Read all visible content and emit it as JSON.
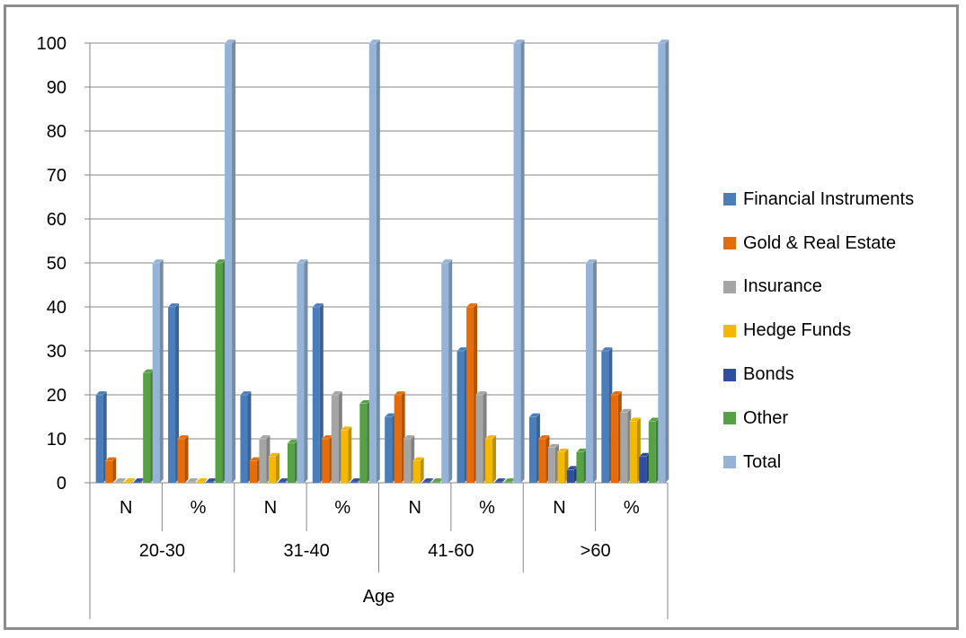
{
  "chart_data": {
    "type": "bar",
    "title": "",
    "ylabel": "",
    "xlabel": "Age",
    "ylim": [
      0,
      100
    ],
    "yticks": [
      0,
      10,
      20,
      30,
      40,
      50,
      60,
      70,
      80,
      90,
      100
    ],
    "groups": [
      "20-30",
      "31-40",
      "41-60",
      ">60"
    ],
    "categories": [
      "N",
      "%",
      "N",
      "%",
      "N",
      "%",
      "N",
      "%"
    ],
    "series": [
      {
        "name": "Financial Instruments",
        "color": "#4a7ebb",
        "values": [
          20,
          40,
          20,
          40,
          15,
          30,
          15,
          30
        ]
      },
      {
        "name": "Gold & Real Estate",
        "color": "#e46c0a",
        "values": [
          5,
          10,
          5,
          10,
          20,
          40,
          10,
          20
        ]
      },
      {
        "name": "Insurance",
        "color": "#a5a5a5",
        "values": [
          0,
          0,
          10,
          20,
          10,
          20,
          8,
          16
        ]
      },
      {
        "name": "Hedge Funds",
        "color": "#f5b800",
        "values": [
          0,
          0,
          6,
          12,
          5,
          10,
          7,
          14
        ]
      },
      {
        "name": "Bonds",
        "color": "#2f4f9e",
        "values": [
          0,
          0,
          0,
          0,
          0,
          0,
          3,
          6
        ]
      },
      {
        "name": "Other",
        "color": "#56a046",
        "values": [
          25,
          50,
          9,
          18,
          0,
          0,
          7,
          14
        ]
      },
      {
        "name": "Total",
        "color": "#95b3d7",
        "values": [
          50,
          100,
          50,
          100,
          50,
          100,
          50,
          100
        ]
      }
    ],
    "grid": true,
    "legend_position": "right"
  }
}
